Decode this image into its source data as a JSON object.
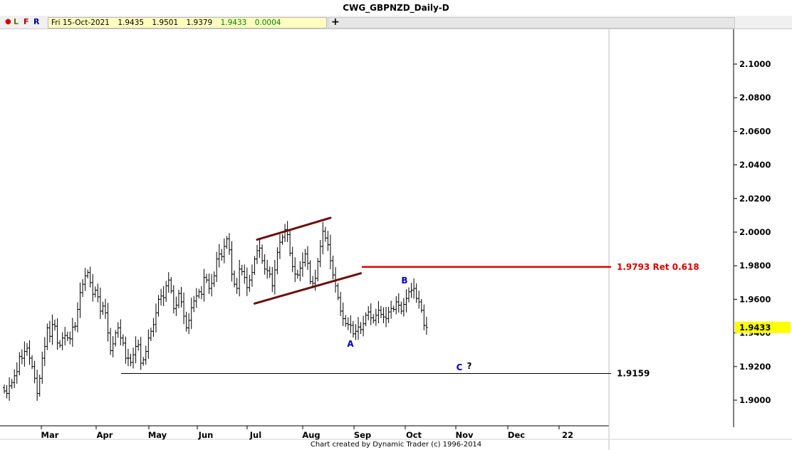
{
  "window": {
    "title": "CWG_GBPNZD_Daily-D"
  },
  "toolbar": {
    "buttons": [
      "●",
      "L",
      "F",
      "R"
    ],
    "ohlc": {
      "date": "Fri 15-Oct-2021",
      "open": "1.9435",
      "high": "1.9501",
      "low": "1.9379",
      "close": "1.9433",
      "change": "0.0004"
    },
    "add_label": "+"
  },
  "footer": {
    "credit": "Chart created by Dynamic Trader  (c)  1996-2014"
  },
  "chart_data": {
    "type": "ohlc",
    "instrument": "GBPNZD",
    "timeframe": "Daily",
    "x_ticks": [
      "Mar",
      "Apr",
      "May",
      "Jun",
      "Jul",
      "Aug",
      "Sep",
      "Oct",
      "Nov",
      "Dec",
      "22"
    ],
    "y_ticks": [
      "1.9000",
      "1.9200",
      "1.9400",
      "1.9600",
      "1.9800",
      "2.0000",
      "2.0200",
      "2.0400",
      "2.0600",
      "2.0800",
      "2.1000"
    ],
    "ylim": [
      1.884,
      2.112
    ],
    "last_price": "1.9433",
    "colors": {
      "price_bars": "#000000",
      "channel": "#6a1010",
      "retracement": "#e00000",
      "wave_labels": "#0000c0",
      "last_price_bg": "#ffff00"
    },
    "series": [
      {
        "name": "",
        "closes": [
          1.9055,
          1.904,
          1.9085,
          1.9105,
          1.9145,
          1.917,
          1.926,
          1.925,
          1.929,
          1.931,
          1.925,
          1.92,
          1.913,
          1.904,
          1.913,
          1.925,
          1.932,
          1.943,
          1.938,
          1.945,
          1.944,
          1.934,
          1.9326,
          1.937,
          1.9385,
          1.937,
          1.9365,
          1.9435,
          1.944,
          1.954,
          1.964,
          1.969,
          1.974,
          1.976,
          1.97,
          1.963,
          1.9655,
          1.9615,
          1.953,
          1.956,
          1.952,
          1.94,
          1.9295,
          1.9335,
          1.94,
          1.943,
          1.937,
          1.934,
          1.925,
          1.925,
          1.9225,
          1.927,
          1.932,
          1.933,
          1.922,
          1.924,
          1.929,
          1.937,
          1.941,
          1.945,
          1.952,
          1.96,
          1.962,
          1.961,
          1.968,
          1.9715,
          1.965,
          1.9545,
          1.9565,
          1.9635,
          1.9585,
          1.95,
          1.943,
          1.9475,
          1.955,
          1.959,
          1.962,
          1.9645,
          1.963,
          1.973,
          1.9715,
          1.9665,
          1.9695,
          1.974,
          1.984,
          1.987,
          1.9855,
          1.9915,
          1.996,
          1.9895,
          1.975,
          1.969,
          1.9665,
          1.978,
          1.9765,
          1.973,
          1.967,
          1.9715,
          1.976,
          1.984,
          1.989,
          1.9905,
          1.983,
          1.978,
          1.977,
          1.975,
          1.968,
          1.9775,
          1.988,
          1.994,
          1.997,
          2.0015,
          1.9985,
          1.9875,
          1.9795,
          1.975,
          1.9745,
          1.9785,
          1.982,
          1.987,
          1.9815,
          1.9705,
          1.9695,
          1.9725,
          1.9825,
          1.9915,
          2.0005,
          1.9965,
          1.9925,
          1.983,
          1.9745,
          1.968,
          1.961,
          1.953,
          1.9485,
          1.9455,
          1.945,
          1.9445,
          1.9395,
          1.941,
          1.9435,
          1.942,
          1.9455,
          1.9505,
          1.9525,
          1.949,
          1.9475,
          1.9505,
          1.9535,
          1.951,
          1.9495,
          1.9485,
          1.9525,
          1.9545,
          1.954,
          1.9585,
          1.9565,
          1.953,
          1.957,
          1.9605,
          1.9645,
          1.9655,
          1.9665,
          1.9605,
          1.9585,
          1.9535,
          1.9445,
          1.9433
        ]
      }
    ],
    "annotations": [
      {
        "type": "trendline",
        "from": {
          "bar": 100,
          "price": 1.9955
        },
        "to": {
          "bar": 129,
          "price": 2.0085
        }
      },
      {
        "type": "trendline",
        "from": {
          "bar": 99,
          "price": 1.9575
        },
        "to": {
          "bar": 141,
          "price": 1.9755
        }
      },
      {
        "type": "hline",
        "price": 1.9793,
        "from_bar": 120,
        "to_bar": 220,
        "label": "1.9793 Ret 0.618"
      },
      {
        "type": "hline",
        "price": 1.9159,
        "from_bar": 40,
        "to_bar": 220,
        "label": "1.9159"
      }
    ],
    "wave_labels": [
      {
        "text": "A",
        "bar": 125,
        "price": 1.9345
      },
      {
        "text": "B",
        "bar": 144,
        "price": 1.9715
      },
      {
        "text": "C",
        "bar": 165,
        "price": 1.9195
      },
      {
        "text": "?",
        "bar": 168,
        "price": 1.9205
      }
    ]
  }
}
